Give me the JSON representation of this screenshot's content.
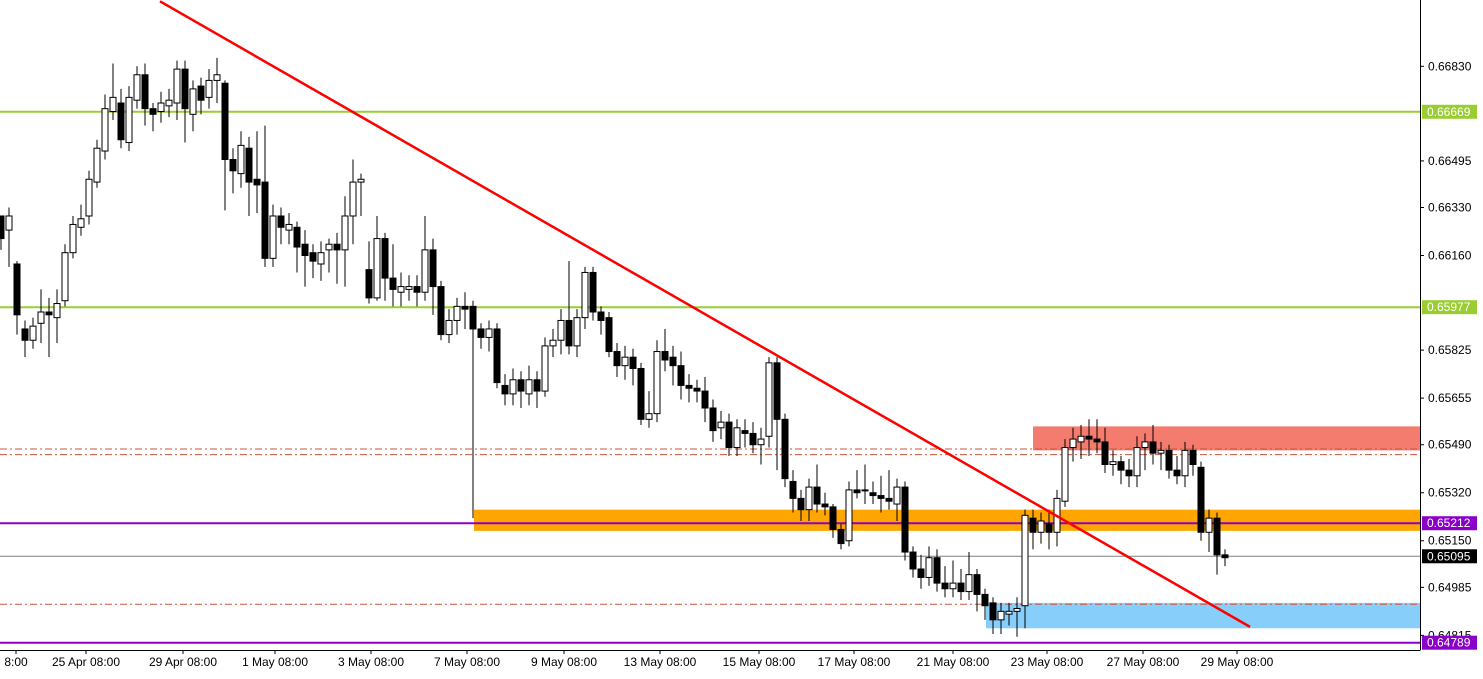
{
  "colors": {
    "background": "#ffffff",
    "candle_up_fill": "#ffffff",
    "candle_down_fill": "#000000",
    "candle_outline": "#000000",
    "trendline": "#ff0000",
    "green_level": "#9acd32",
    "purple_level": "#8b00c8",
    "resistance_zone": "#f47c6e",
    "support_zone": "#ffa500",
    "demand_zone": "#87cefa",
    "dashdot_level": "#c8553d",
    "current_price_line": "#808080",
    "axis": "#000000"
  },
  "chart_data": {
    "type": "candlestick",
    "title": "",
    "xlabel": "",
    "ylabel": "",
    "ylim": [
      0.64795,
      0.6704
    ],
    "y_ticks": [
      "0.66830",
      "0.66495",
      "0.66330",
      "0.66160",
      "0.65825",
      "0.65655",
      "0.65490",
      "0.65320",
      "0.65150",
      "0.64985",
      "0.64815"
    ],
    "x_ticks": [
      "8:00",
      "25 Apr 08:00",
      "29 Apr 08:00",
      "1 May 08:00",
      "3 May 08:00",
      "7 May 08:00",
      "9 May 08:00",
      "13 May 08:00",
      "15 May 08:00",
      "17 May 08:00",
      "21 May 08:00",
      "23 May 08:00",
      "27 May 08:00",
      "29 May 08:00"
    ],
    "horizontal_levels": [
      {
        "label": "0.66669",
        "price": 0.66669,
        "style": "green"
      },
      {
        "label": "0.65977",
        "price": 0.65977,
        "style": "green"
      },
      {
        "label": "0.65212",
        "price": 0.65212,
        "style": "purple"
      },
      {
        "label": "0.65095",
        "price": 0.65095,
        "style": "current"
      },
      {
        "label": "0.64789",
        "price": 0.64789,
        "style": "purple"
      }
    ],
    "dashdot_levels": [
      0.65475,
      0.65455,
      0.64925
    ],
    "zones": [
      {
        "kind": "resistance",
        "price_top": 0.65555,
        "price_bottom": 0.6547,
        "x_start": 1033
      },
      {
        "kind": "support",
        "price_top": 0.6526,
        "price_bottom": 0.65185,
        "x_start": 474
      },
      {
        "kind": "demand",
        "price_top": 0.6493,
        "price_bottom": 0.6484,
        "x_start": 986
      }
    ],
    "trendline": {
      "from": {
        "x": 160,
        "price": 0.6706
      },
      "to": {
        "x": 1250,
        "price": 0.64845
      }
    },
    "candles": [
      [
        1,
        0.663,
        0.6622,
        0.6628,
        0.6618
      ],
      [
        9,
        0.6625,
        0.663,
        0.6633,
        0.6612
      ],
      [
        17,
        0.6613,
        0.6595,
        0.6614,
        0.6588
      ],
      [
        25,
        0.659,
        0.6586,
        0.6593,
        0.658
      ],
      [
        33,
        0.6586,
        0.6591,
        0.6594,
        0.6583
      ],
      [
        41,
        0.6592,
        0.6596,
        0.6604,
        0.6585
      ],
      [
        49,
        0.6596,
        0.6595,
        0.6601,
        0.658
      ],
      [
        57,
        0.6594,
        0.6599,
        0.6604,
        0.6585
      ],
      [
        65,
        0.66,
        0.6617,
        0.662,
        0.6598
      ],
      [
        73,
        0.6617,
        0.6627,
        0.663,
        0.6615
      ],
      [
        81,
        0.6626,
        0.6629,
        0.6634,
        0.6623
      ],
      [
        89,
        0.663,
        0.6643,
        0.6646,
        0.6627
      ],
      [
        97,
        0.6642,
        0.6654,
        0.6657,
        0.664
      ],
      [
        105,
        0.6653,
        0.6668,
        0.6673,
        0.665
      ],
      [
        113,
        0.6667,
        0.6672,
        0.6684,
        0.6664
      ],
      [
        121,
        0.667,
        0.6657,
        0.6675,
        0.6654
      ],
      [
        129,
        0.6656,
        0.6672,
        0.6676,
        0.6653
      ],
      [
        137,
        0.6671,
        0.668,
        0.6683,
        0.6668
      ],
      [
        145,
        0.668,
        0.6668,
        0.6684,
        0.6662
      ],
      [
        153,
        0.6668,
        0.6666,
        0.667,
        0.666
      ],
      [
        161,
        0.6667,
        0.667,
        0.6674,
        0.6663
      ],
      [
        169,
        0.6669,
        0.6671,
        0.6675,
        0.6665
      ],
      [
        177,
        0.667,
        0.6682,
        0.6685,
        0.6664
      ],
      [
        185,
        0.6682,
        0.6668,
        0.6685,
        0.6656
      ],
      [
        193,
        0.6666,
        0.6675,
        0.6678,
        0.666
      ],
      [
        201,
        0.6676,
        0.6671,
        0.6679,
        0.6666
      ],
      [
        209,
        0.6672,
        0.6678,
        0.6682,
        0.6668
      ],
      [
        217,
        0.6678,
        0.668,
        0.6686,
        0.667
      ],
      [
        225,
        0.6677,
        0.665,
        0.6678,
        0.6632
      ],
      [
        233,
        0.665,
        0.6646,
        0.6654,
        0.6638
      ],
      [
        241,
        0.6645,
        0.6655,
        0.666,
        0.664
      ],
      [
        249,
        0.6654,
        0.6642,
        0.6658,
        0.663
      ],
      [
        257,
        0.6643,
        0.6641,
        0.666,
        0.6631
      ],
      [
        265,
        0.6642,
        0.6615,
        0.6662,
        0.6612
      ],
      [
        273,
        0.6615,
        0.663,
        0.6634,
        0.6612
      ],
      [
        281,
        0.663,
        0.6626,
        0.6633,
        0.662
      ],
      [
        289,
        0.6625,
        0.6627,
        0.6631,
        0.662
      ],
      [
        297,
        0.6626,
        0.6619,
        0.6628,
        0.661
      ],
      [
        305,
        0.662,
        0.6616,
        0.6625,
        0.6605
      ],
      [
        313,
        0.6617,
        0.6614,
        0.662,
        0.6608
      ],
      [
        321,
        0.6613,
        0.6617,
        0.6621,
        0.6607
      ],
      [
        329,
        0.6618,
        0.662,
        0.6622,
        0.661
      ],
      [
        337,
        0.662,
        0.6618,
        0.6624,
        0.6606
      ],
      [
        345,
        0.6618,
        0.663,
        0.6637,
        0.6605
      ],
      [
        353,
        0.663,
        0.6642,
        0.665,
        0.662
      ],
      [
        361,
        0.6642,
        0.6643,
        0.6645,
        0.663
      ],
      [
        369,
        0.6611,
        0.6601,
        0.6621,
        0.6599
      ],
      [
        377,
        0.6601,
        0.6622,
        0.663,
        0.66
      ],
      [
        385,
        0.6622,
        0.6608,
        0.6624,
        0.66
      ],
      [
        393,
        0.6608,
        0.6604,
        0.662,
        0.6598
      ],
      [
        401,
        0.6603,
        0.6605,
        0.661,
        0.6598
      ],
      [
        409,
        0.6604,
        0.6605,
        0.6609,
        0.66
      ],
      [
        417,
        0.6605,
        0.6603,
        0.6609,
        0.6598
      ],
      [
        425,
        0.6603,
        0.6618,
        0.663,
        0.66
      ],
      [
        433,
        0.6618,
        0.6605,
        0.6622,
        0.6595
      ],
      [
        441,
        0.6605,
        0.6588,
        0.6607,
        0.6586
      ],
      [
        449,
        0.6588,
        0.6593,
        0.6597,
        0.6585
      ],
      [
        457,
        0.6593,
        0.6598,
        0.6601,
        0.6588
      ],
      [
        465,
        0.6598,
        0.6597,
        0.6603,
        0.659
      ],
      [
        473,
        0.6598,
        0.659,
        0.66,
        0.6523
      ],
      [
        481,
        0.659,
        0.6587,
        0.6592,
        0.6583
      ],
      [
        489,
        0.6587,
        0.659,
        0.6593,
        0.6582
      ],
      [
        497,
        0.659,
        0.6571,
        0.6592,
        0.6569
      ],
      [
        505,
        0.657,
        0.6567,
        0.6574,
        0.6563
      ],
      [
        513,
        0.6567,
        0.6572,
        0.6576,
        0.6563
      ],
      [
        521,
        0.6572,
        0.6568,
        0.6575,
        0.6562
      ],
      [
        529,
        0.6567,
        0.6572,
        0.6577,
        0.6563
      ],
      [
        537,
        0.6572,
        0.6568,
        0.6575,
        0.6562
      ],
      [
        545,
        0.6568,
        0.6584,
        0.6587,
        0.6566
      ],
      [
        553,
        0.6584,
        0.6586,
        0.659,
        0.658
      ],
      [
        561,
        0.6586,
        0.6593,
        0.6597,
        0.6581
      ],
      [
        569,
        0.6593,
        0.6584,
        0.6614,
        0.6581
      ],
      [
        577,
        0.6584,
        0.6594,
        0.6597,
        0.658
      ],
      [
        585,
        0.6594,
        0.661,
        0.6612,
        0.659
      ],
      [
        593,
        0.661,
        0.6596,
        0.6612,
        0.6593
      ],
      [
        601,
        0.6596,
        0.6593,
        0.6598,
        0.6588
      ],
      [
        609,
        0.6594,
        0.6582,
        0.6596,
        0.658
      ],
      [
        617,
        0.6582,
        0.6577,
        0.6585,
        0.6573
      ],
      [
        625,
        0.6577,
        0.658,
        0.6584,
        0.6572
      ],
      [
        633,
        0.658,
        0.6576,
        0.6583,
        0.657
      ],
      [
        641,
        0.6576,
        0.6558,
        0.6578,
        0.6556
      ],
      [
        649,
        0.6558,
        0.656,
        0.6568,
        0.6555
      ],
      [
        657,
        0.656,
        0.6582,
        0.6586,
        0.6557
      ],
      [
        665,
        0.6582,
        0.6579,
        0.659,
        0.6575
      ],
      [
        673,
        0.658,
        0.6577,
        0.6584,
        0.657
      ],
      [
        681,
        0.6577,
        0.657,
        0.6582,
        0.6565
      ],
      [
        689,
        0.657,
        0.6569,
        0.6574,
        0.6564
      ],
      [
        697,
        0.6569,
        0.6568,
        0.6572,
        0.6564
      ],
      [
        705,
        0.6568,
        0.6562,
        0.6573,
        0.6557
      ],
      [
        713,
        0.6562,
        0.6554,
        0.6565,
        0.655
      ],
      [
        721,
        0.6555,
        0.6557,
        0.6561,
        0.6551
      ],
      [
        729,
        0.6557,
        0.6548,
        0.656,
        0.6545
      ],
      [
        737,
        0.6548,
        0.6555,
        0.6558,
        0.6545
      ],
      [
        745,
        0.6554,
        0.6553,
        0.6558,
        0.6548
      ],
      [
        753,
        0.6553,
        0.6549,
        0.6557,
        0.6546
      ],
      [
        761,
        0.6549,
        0.6551,
        0.6555,
        0.6542
      ],
      [
        769,
        0.6552,
        0.6578,
        0.658,
        0.6548
      ],
      [
        777,
        0.6578,
        0.6558,
        0.658,
        0.654
      ],
      [
        785,
        0.6558,
        0.6537,
        0.656,
        0.6534
      ],
      [
        793,
        0.6536,
        0.653,
        0.654,
        0.6525
      ],
      [
        801,
        0.653,
        0.6526,
        0.6533,
        0.6522
      ],
      [
        809,
        0.6526,
        0.6534,
        0.6537,
        0.6522
      ],
      [
        817,
        0.6534,
        0.6528,
        0.6542,
        0.6525
      ],
      [
        825,
        0.6528,
        0.6527,
        0.6532,
        0.6524
      ],
      [
        833,
        0.6527,
        0.6519,
        0.6528,
        0.6516
      ],
      [
        841,
        0.6519,
        0.6514,
        0.6521,
        0.6512
      ],
      [
        849,
        0.6515,
        0.6533,
        0.6536,
        0.6513
      ],
      [
        857,
        0.6533,
        0.6532,
        0.654,
        0.653
      ],
      [
        865,
        0.6533,
        0.6533,
        0.6542,
        0.6528
      ],
      [
        873,
        0.6532,
        0.6531,
        0.6536,
        0.6528
      ],
      [
        881,
        0.6531,
        0.653,
        0.6538,
        0.6525
      ],
      [
        889,
        0.653,
        0.6529,
        0.654,
        0.6526
      ],
      [
        897,
        0.6528,
        0.6534,
        0.6537,
        0.6522
      ],
      [
        905,
        0.6534,
        0.6511,
        0.6536,
        0.6508
      ],
      [
        913,
        0.6511,
        0.6505,
        0.6513,
        0.6502
      ],
      [
        921,
        0.6505,
        0.6502,
        0.651,
        0.6498
      ],
      [
        929,
        0.6502,
        0.6509,
        0.6513,
        0.6499
      ],
      [
        937,
        0.6509,
        0.65,
        0.6512,
        0.6497
      ],
      [
        945,
        0.65,
        0.6498,
        0.6506,
        0.6495
      ],
      [
        953,
        0.6498,
        0.65,
        0.6508,
        0.6495
      ],
      [
        961,
        0.65,
        0.6497,
        0.6505,
        0.6494
      ],
      [
        969,
        0.6497,
        0.6503,
        0.6511,
        0.6494
      ],
      [
        977,
        0.6503,
        0.6496,
        0.6505,
        0.649
      ],
      [
        985,
        0.6496,
        0.6492,
        0.6498,
        0.6487
      ],
      [
        993,
        0.6493,
        0.6487,
        0.6495,
        0.6482
      ],
      [
        1001,
        0.6487,
        0.649,
        0.6493,
        0.6482
      ],
      [
        1009,
        0.6489,
        0.649,
        0.6493,
        0.6485
      ],
      [
        1017,
        0.649,
        0.6491,
        0.6495,
        0.6481
      ],
      [
        1025,
        0.6492,
        0.6524,
        0.6526,
        0.6484
      ],
      [
        1033,
        0.6523,
        0.6518,
        0.6526,
        0.6512
      ],
      [
        1041,
        0.6518,
        0.6522,
        0.6525,
        0.6514
      ],
      [
        1049,
        0.6521,
        0.6518,
        0.6526,
        0.6512
      ],
      [
        1057,
        0.6518,
        0.653,
        0.6533,
        0.6513
      ],
      [
        1065,
        0.6529,
        0.6548,
        0.6551,
        0.6527
      ],
      [
        1073,
        0.6548,
        0.6551,
        0.6555,
        0.6543
      ],
      [
        1081,
        0.655,
        0.6552,
        0.6556,
        0.6544
      ],
      [
        1089,
        0.6552,
        0.6551,
        0.6558,
        0.6545
      ],
      [
        1097,
        0.6551,
        0.655,
        0.6558,
        0.6546
      ],
      [
        1105,
        0.655,
        0.6542,
        0.6555,
        0.6539
      ],
      [
        1113,
        0.6542,
        0.6543,
        0.6547,
        0.6538
      ],
      [
        1121,
        0.6543,
        0.654,
        0.6545,
        0.6535
      ],
      [
        1129,
        0.654,
        0.6538,
        0.6544,
        0.6534
      ],
      [
        1137,
        0.6538,
        0.6548,
        0.6552,
        0.6534
      ],
      [
        1145,
        0.6548,
        0.655,
        0.6553,
        0.654
      ],
      [
        1153,
        0.655,
        0.6546,
        0.6556,
        0.6542
      ],
      [
        1161,
        0.6546,
        0.6547,
        0.655,
        0.654
      ],
      [
        1169,
        0.6547,
        0.654,
        0.6549,
        0.6537
      ],
      [
        1177,
        0.654,
        0.6538,
        0.6545,
        0.6535
      ],
      [
        1185,
        0.6538,
        0.6547,
        0.655,
        0.6534
      ],
      [
        1193,
        0.6547,
        0.6542,
        0.6549,
        0.6538
      ],
      [
        1201,
        0.6541,
        0.6518,
        0.6543,
        0.6515
      ],
      [
        1209,
        0.6518,
        0.6523,
        0.6526,
        0.6511
      ],
      [
        1217,
        0.6523,
        0.651,
        0.6525,
        0.6503
      ],
      [
        1225,
        0.651,
        0.6509,
        0.6512,
        0.6506
      ]
    ]
  }
}
